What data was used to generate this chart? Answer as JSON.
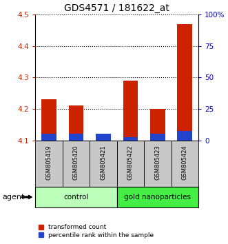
{
  "title": "GDS4571 / 181622_at",
  "samples": [
    "GSM805419",
    "GSM805420",
    "GSM805421",
    "GSM805422",
    "GSM805423",
    "GSM805424"
  ],
  "red_values": [
    4.23,
    4.21,
    4.11,
    4.29,
    4.2,
    4.47
  ],
  "blue_values": [
    4.12,
    4.12,
    4.12,
    4.11,
    4.12,
    4.13
  ],
  "ymin": 4.1,
  "ymax": 4.5,
  "yticks": [
    4.1,
    4.2,
    4.3,
    4.4,
    4.5
  ],
  "right_yticks": [
    0,
    25,
    50,
    75,
    100
  ],
  "right_yticklabels": [
    "0",
    "25",
    "50",
    "75",
    "100%"
  ],
  "groups": [
    {
      "label": "control",
      "start": 0,
      "end": 3,
      "color": "#bbffbb"
    },
    {
      "label": "gold nanoparticles",
      "start": 3,
      "end": 6,
      "color": "#44ee44"
    }
  ],
  "agent_label": "agent",
  "legend_red": "transformed count",
  "legend_blue": "percentile rank within the sample",
  "bar_width": 0.55,
  "red_color": "#cc2200",
  "blue_color": "#2244cc",
  "title_fontsize": 10,
  "tick_fontsize": 7.5,
  "label_fontsize": 8,
  "grid_color": "#000000",
  "bar_bottom": 4.1,
  "sample_box_color": "#c8c8c8"
}
